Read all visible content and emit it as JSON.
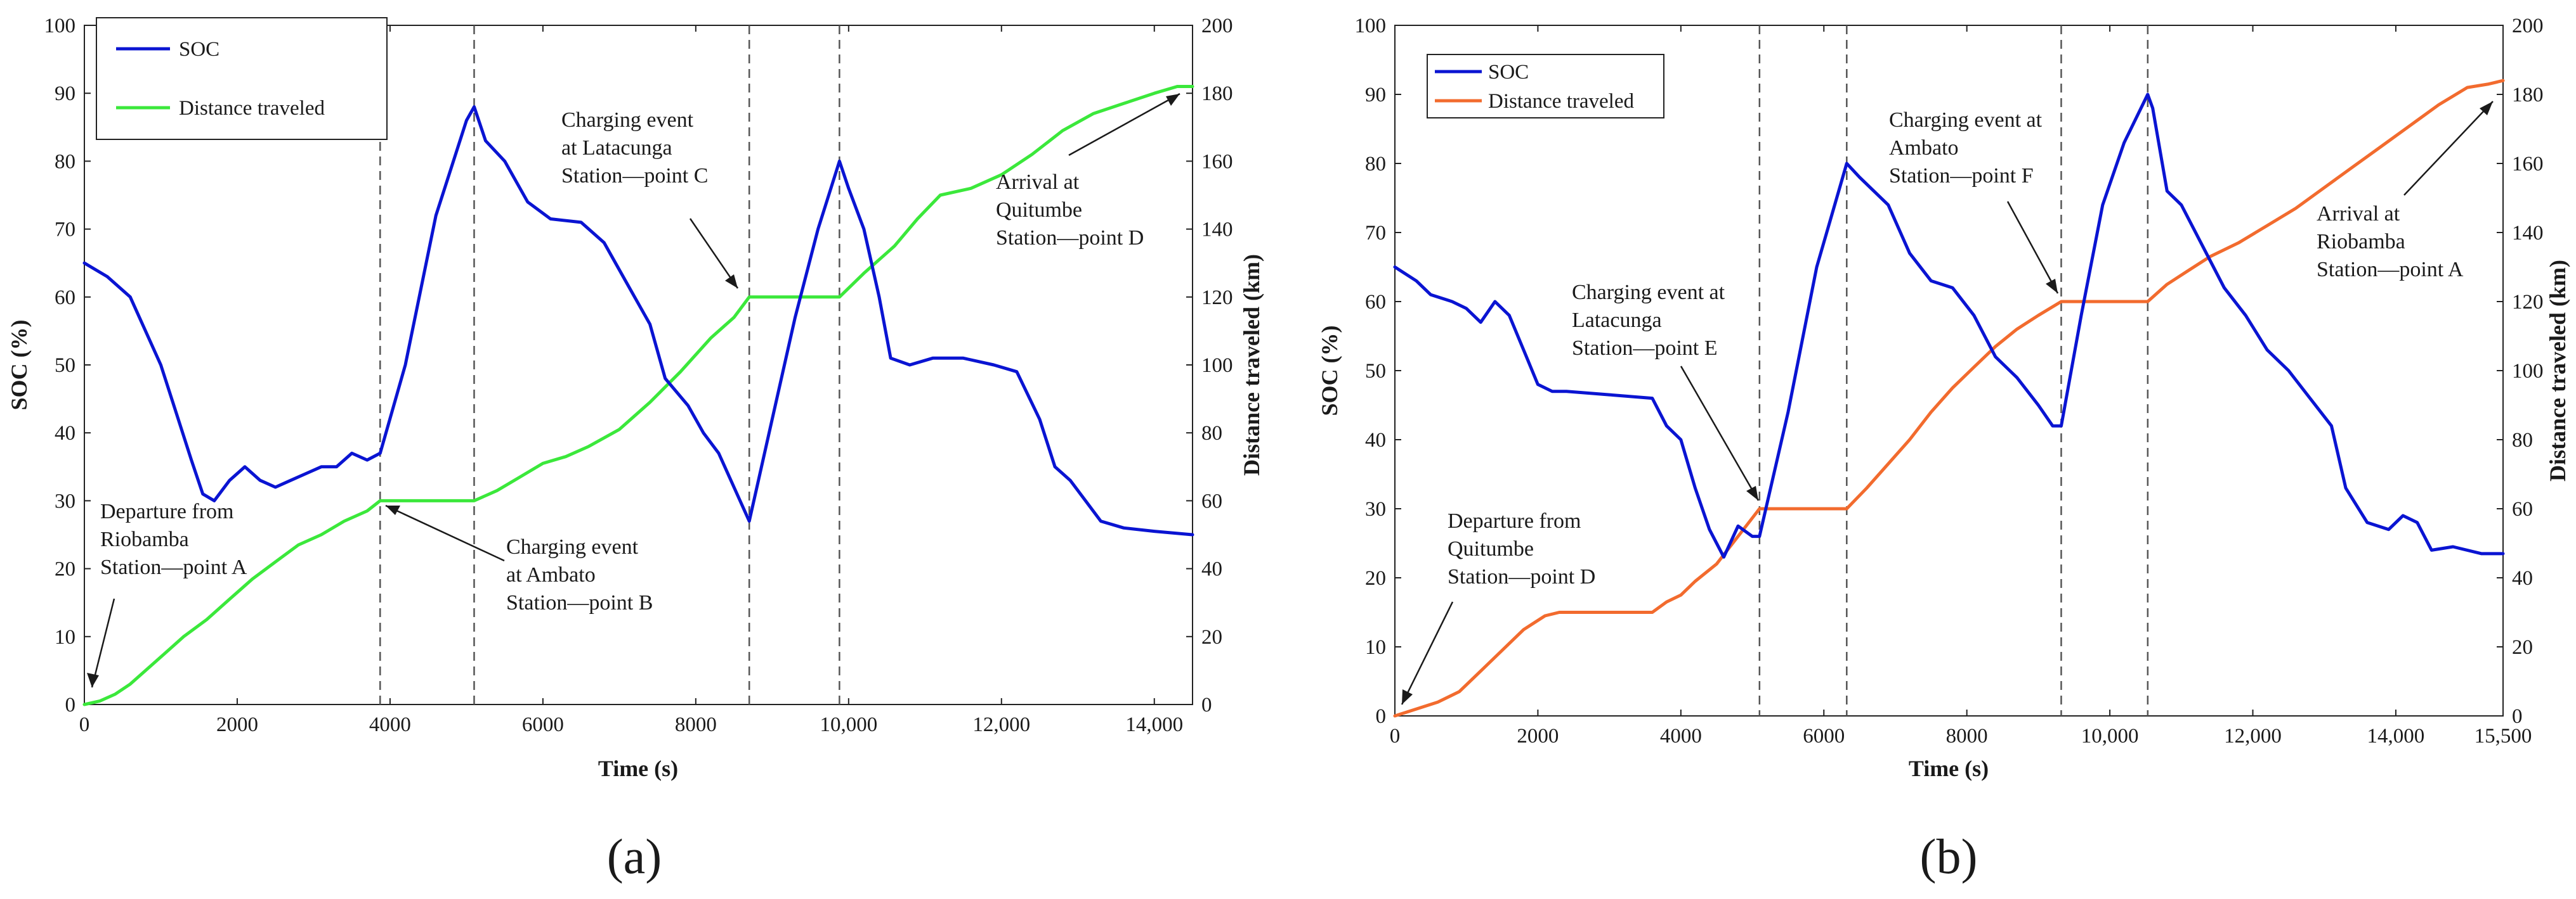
{
  "chart_data": [
    {
      "type": "line",
      "id": "a",
      "panel_label": "(a)",
      "xlabel": "Time (s)",
      "ylabel_left": "SOC (%)",
      "ylabel_right": "Distance traveled (km)",
      "xlim": [
        0,
        14500
      ],
      "ylim_left": [
        0,
        100
      ],
      "ylim_right": [
        0,
        200
      ],
      "x_ticks": [
        0,
        2000,
        4000,
        6000,
        8000,
        10000,
        12000,
        14000
      ],
      "x_tick_labels": [
        "0",
        "2000",
        "4000",
        "6000",
        "8000",
        "10,000",
        "12,000",
        "14,000"
      ],
      "y_left_ticks": [
        0,
        10,
        20,
        30,
        40,
        50,
        60,
        70,
        80,
        90,
        100
      ],
      "y_left_tick_labels": [
        "0",
        "10",
        "20",
        "30",
        "40",
        "50",
        "60",
        "70",
        "80",
        "90",
        "100"
      ],
      "y_right_ticks": [
        0,
        20,
        40,
        60,
        80,
        100,
        120,
        140,
        160,
        180,
        200
      ],
      "y_right_tick_labels": [
        "0",
        "20",
        "40",
        "60",
        "80",
        "100",
        "120",
        "140",
        "160",
        "180",
        "200"
      ],
      "legend": [
        "SOC",
        "Distance traveled"
      ],
      "legend_position": "top-left",
      "vlines": [
        3870,
        5100,
        8700,
        9880
      ],
      "series": [
        {
          "name": "SOC",
          "axis": "left",
          "color": "#0a14d2",
          "x": [
            0,
            300,
            600,
            800,
            1000,
            1200,
            1400,
            1550,
            1700,
            1900,
            2100,
            2300,
            2500,
            2700,
            2900,
            3100,
            3300,
            3500,
            3700,
            3870,
            4200,
            4600,
            5000,
            5100,
            5250,
            5500,
            5800,
            6100,
            6500,
            6800,
            7100,
            7400,
            7600,
            7900,
            8100,
            8300,
            8500,
            8700,
            9000,
            9300,
            9600,
            9880,
            10000,
            10200,
            10400,
            10550,
            10800,
            11100,
            11500,
            11900,
            12200,
            12500,
            12700,
            12900,
            13100,
            13300,
            13600,
            14000,
            14500
          ],
          "values": [
            65,
            63,
            60,
            55,
            50,
            43,
            36,
            31,
            30,
            33,
            35,
            33,
            32,
            33,
            34,
            35,
            35,
            37,
            36,
            37,
            50,
            72,
            86,
            88,
            83,
            80,
            74,
            71.5,
            71,
            68,
            62,
            56,
            48,
            44,
            40,
            37,
            32,
            27,
            42,
            57,
            70,
            80,
            76,
            70,
            60,
            51,
            50,
            51,
            51,
            50,
            49,
            42,
            35,
            33,
            30,
            27,
            26,
            25.5,
            25
          ]
        },
        {
          "name": "Distance traveled",
          "axis": "right",
          "color": "#3be83b",
          "x": [
            0,
            200,
            400,
            600,
            800,
            1000,
            1300,
            1600,
            1900,
            2200,
            2500,
            2800,
            3100,
            3400,
            3700,
            3870,
            4400,
            5100,
            5400,
            5700,
            6000,
            6300,
            6600,
            7000,
            7400,
            7800,
            8200,
            8500,
            8700,
            9300,
            9880,
            10200,
            10600,
            10900,
            11200,
            11600,
            12000,
            12400,
            12800,
            13200,
            13600,
            14000,
            14300,
            14500
          ],
          "values": [
            0,
            1,
            3,
            6,
            10,
            14,
            20,
            25,
            31,
            37,
            42,
            47,
            50,
            54,
            57,
            60,
            60,
            60,
            63,
            67,
            71,
            73,
            76,
            81,
            89,
            98,
            108,
            114,
            120,
            120,
            120,
            127,
            135,
            143,
            150,
            152,
            156,
            162,
            169,
            174,
            177,
            180,
            182,
            182
          ]
        }
      ],
      "annotations": [
        {
          "lines": [
            "Departure from",
            "Riobamba",
            "Station—point A"
          ]
        },
        {
          "lines": [
            "Charging event",
            "at Ambato",
            "Station—point B"
          ]
        },
        {
          "lines": [
            "Charging event",
            "at Latacunga",
            "Station—point C"
          ]
        },
        {
          "lines": [
            "Arrival at",
            "Quitumbe",
            "Station—point D"
          ]
        }
      ]
    },
    {
      "type": "line",
      "id": "b",
      "panel_label": "(b)",
      "xlabel": "Time (s)",
      "ylabel_left": "SOC (%)",
      "ylabel_right": "Distance traveled (km)",
      "xlim": [
        0,
        15500
      ],
      "ylim_left": [
        0,
        100
      ],
      "ylim_right": [
        0,
        200
      ],
      "x_ticks": [
        0,
        2000,
        4000,
        6000,
        8000,
        10000,
        12000,
        14000,
        15500
      ],
      "x_tick_labels": [
        "0",
        "2000",
        "4000",
        "6000",
        "8000",
        "10,000",
        "12,000",
        "14,000",
        "15,500"
      ],
      "y_left_ticks": [
        0,
        10,
        20,
        30,
        40,
        50,
        60,
        70,
        80,
        90,
        100
      ],
      "y_left_tick_labels": [
        "0",
        "10",
        "20",
        "30",
        "40",
        "50",
        "60",
        "70",
        "80",
        "90",
        "100"
      ],
      "y_right_ticks": [
        0,
        20,
        40,
        60,
        80,
        100,
        120,
        140,
        160,
        180,
        200
      ],
      "y_right_tick_labels": [
        "0",
        "20",
        "40",
        "60",
        "80",
        "100",
        "120",
        "140",
        "160",
        "180",
        "200"
      ],
      "legend": [
        "SOC",
        "Distance traveled"
      ],
      "legend_position": "top-left",
      "vlines": [
        5100,
        6320,
        9320,
        10530
      ],
      "series": [
        {
          "name": "SOC",
          "axis": "left",
          "color": "#0a14d2",
          "x": [
            0,
            300,
            500,
            800,
            1000,
            1200,
            1400,
            1600,
            1800,
            2000,
            2200,
            2400,
            3000,
            3600,
            3800,
            4000,
            4200,
            4400,
            4600,
            4800,
            5000,
            5100,
            5500,
            5900,
            6320,
            6500,
            6900,
            7200,
            7500,
            7800,
            8100,
            8400,
            8700,
            9000,
            9200,
            9320,
            9600,
            9900,
            10200,
            10530,
            10600,
            10800,
            11000,
            11300,
            11600,
            11900,
            12200,
            12500,
            12800,
            13100,
            13300,
            13600,
            13900,
            14100,
            14300,
            14500,
            14800,
            15200,
            15500
          ],
          "values": [
            65,
            63,
            61,
            60,
            59,
            57,
            60,
            58,
            53,
            48,
            47,
            47,
            46.5,
            46,
            42,
            40,
            33,
            27,
            23,
            27.5,
            26,
            26,
            44,
            65,
            80,
            78,
            74,
            67,
            63,
            62,
            58,
            52,
            49,
            45,
            42,
            42,
            58,
            74,
            83,
            90,
            88,
            76,
            74,
            68,
            62,
            58,
            53,
            50,
            46,
            42,
            33,
            28,
            27,
            29,
            28,
            24,
            24.5,
            23.5,
            23.5
          ]
        },
        {
          "name": "Distance traveled",
          "axis": "right",
          "color": "#f26b2e",
          "x": [
            0,
            300,
            600,
            900,
            1200,
            1500,
            1800,
            2100,
            2300,
            2700,
            3200,
            3600,
            3800,
            4000,
            4200,
            4500,
            4800,
            5100,
            5500,
            6000,
            6320,
            6600,
            6900,
            7200,
            7500,
            7800,
            8100,
            8400,
            8700,
            9000,
            9320,
            9700,
            10100,
            10530,
            10800,
            11100,
            11400,
            11800,
            12200,
            12600,
            13000,
            13400,
            13800,
            14200,
            14600,
            15000,
            15300,
            15500
          ],
          "values": [
            0,
            2,
            4,
            7,
            13,
            19,
            25,
            29,
            30,
            30,
            30,
            30,
            33,
            35,
            39,
            44,
            52,
            60,
            60,
            60,
            60,
            66,
            73,
            80,
            88,
            95,
            101,
            107,
            112,
            116,
            120,
            120,
            120,
            120,
            125,
            129,
            133,
            137,
            142,
            147,
            153,
            159,
            165,
            171,
            177,
            182,
            183,
            184
          ]
        }
      ],
      "annotations": [
        {
          "lines": [
            "Departure from",
            "Quitumbe",
            "Station—point D"
          ]
        },
        {
          "lines": [
            "Charging event at",
            "Latacunga",
            "Station—point E"
          ]
        },
        {
          "lines": [
            "Charging event at",
            "Ambato",
            "Station—point F"
          ]
        },
        {
          "lines": [
            "Arrival at",
            "Riobamba",
            "Station—point A"
          ]
        }
      ]
    }
  ]
}
